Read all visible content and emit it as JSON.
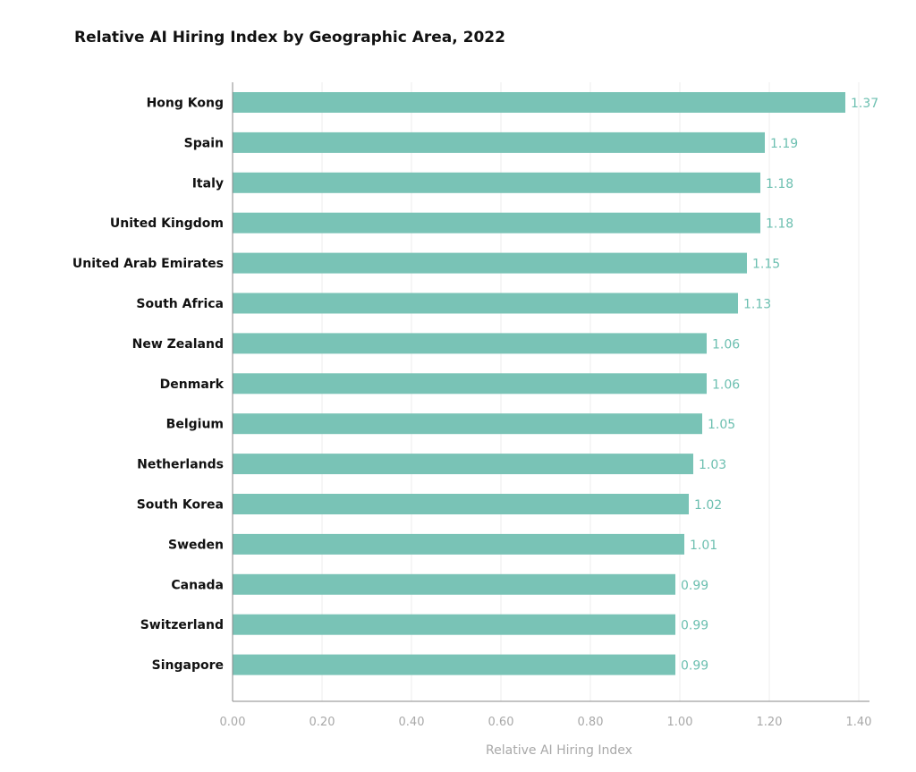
{
  "chart_data": {
    "type": "bar",
    "orientation": "horizontal",
    "title": "Relative AI Hiring Index by Geographic Area, 2022",
    "xlabel": "Relative AI Hiring Index",
    "ylabel": "",
    "xlim": [
      0,
      1.4
    ],
    "ticks": [
      "0.00",
      "0.20",
      "0.40",
      "0.60",
      "0.80",
      "1.00",
      "1.20",
      "1.40"
    ],
    "tick_values": [
      0,
      0.2,
      0.4,
      0.6,
      0.8,
      1.0,
      1.2,
      1.4
    ],
    "categories": [
      "Hong Kong",
      "Spain",
      "Italy",
      "United Kingdom",
      "United Arab Emirates",
      "South Africa",
      "New Zealand",
      "Denmark",
      "Belgium",
      "Netherlands",
      "South Korea",
      "Sweden",
      "Canada",
      "Switzerland",
      "Singapore"
    ],
    "values": [
      1.37,
      1.19,
      1.18,
      1.18,
      1.15,
      1.13,
      1.06,
      1.06,
      1.05,
      1.03,
      1.02,
      1.01,
      0.99,
      0.99,
      0.99
    ],
    "value_labels": [
      "1.37",
      "1.19",
      "1.18",
      "1.18",
      "1.15",
      "1.13",
      "1.06",
      "1.06",
      "1.05",
      "1.03",
      "1.02",
      "1.01",
      "0.99",
      "0.99",
      "0.99"
    ],
    "grid": true,
    "colors": {
      "bar": "#79c3b6",
      "value_label": "#6cbfb0"
    }
  }
}
